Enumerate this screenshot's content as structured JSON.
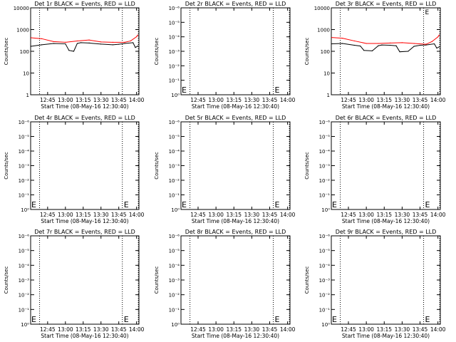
{
  "chart_data": [
    {
      "type": "line",
      "title": "Det 1r BLACK = Events, RED = LLD",
      "xlabel": "Start Time (08-May-16 12:30:40)",
      "ylabel": "Counts/sec",
      "y_scale": "log",
      "ylim": [
        1,
        10000
      ],
      "y_tick_labels": [
        "1",
        "10",
        "100",
        "1000",
        "10000"
      ],
      "x_tick_labels": [
        "12:45",
        "13:00",
        "13:15",
        "13:30",
        "13:45",
        "14:00"
      ],
      "x_range_minutes_after_1230": [
        0.67,
        92.0
      ],
      "markers_dotted_minutes_after_1230": [
        8.2,
        78.0,
        91.5
      ],
      "series": [
        {
          "color": "#000000",
          "x": [
            "12:31",
            "12:40",
            "12:50",
            "13:00",
            "13:03",
            "13:07",
            "13:10",
            "13:13",
            "13:20",
            "13:30",
            "13:40",
            "13:45",
            "13:50",
            "13:57",
            "13:59",
            "14:01"
          ],
          "values": [
            170,
            200,
            230,
            220,
            110,
            100,
            230,
            250,
            240,
            215,
            200,
            210,
            230,
            250,
            150,
            175
          ]
        },
        {
          "color": "#ff0000",
          "x": [
            "12:31",
            "12:40",
            "12:50",
            "13:00",
            "13:10",
            "13:20",
            "13:30",
            "13:40",
            "13:50",
            "13:55",
            "14:00",
            "14:01"
          ],
          "values": [
            420,
            380,
            280,
            260,
            300,
            330,
            270,
            260,
            260,
            300,
            470,
            560
          ]
        }
      ]
    },
    {
      "type": "line",
      "title": "Det 2r BLACK = Events, RED = LLD",
      "xlabel": "Start Time (08-May-16 12:30:40)",
      "ylabel": "Counts/sec",
      "y_scale": "log",
      "y_tick_labels": [
        "10⁰",
        "10⁻¹",
        "10⁻²",
        "10⁻³",
        "10⁻⁴",
        "10⁻⁵",
        "10⁻⁶"
      ],
      "x_tick_labels": [
        "12:45",
        "13:00",
        "13:15",
        "13:30",
        "13:45",
        "14:00"
      ],
      "markers_dotted_minutes_after_1230": [
        8.2,
        78.0,
        91.5
      ],
      "annotations": [
        "E",
        "E"
      ],
      "series": []
    },
    {
      "type": "line",
      "title": "Det 3r BLACK = Events, RED = LLD",
      "xlabel": "Start Time (08-May-16 12:30:40)",
      "ylabel": "Counts/sec",
      "y_scale": "log",
      "ylim": [
        1,
        10000
      ],
      "y_tick_labels": [
        "1",
        "10",
        "100",
        "1000",
        "10000"
      ],
      "x_tick_labels": [
        "12:45",
        "13:00",
        "13:15",
        "13:30",
        "13:45",
        "14:00"
      ],
      "markers_dotted_minutes_after_1230": [
        8.2,
        78.0,
        91.5
      ],
      "annotations": [
        "E"
      ],
      "series": [
        {
          "color": "#000000",
          "x": [
            "12:31",
            "12:40",
            "12:50",
            "12:55",
            "12:58",
            "13:05",
            "13:10",
            "13:13",
            "13:20",
            "13:25",
            "13:28",
            "13:35",
            "13:40",
            "13:45",
            "13:50",
            "13:57",
            "13:59",
            "14:01"
          ],
          "values": [
            220,
            230,
            190,
            175,
            110,
            105,
            180,
            195,
            190,
            180,
            95,
            100,
            170,
            190,
            195,
            220,
            140,
            160
          ]
        },
        {
          "color": "#ff0000",
          "x": [
            "12:31",
            "12:40",
            "12:50",
            "13:00",
            "13:10",
            "13:20",
            "13:30",
            "13:40",
            "13:50",
            "13:55",
            "14:00",
            "14:01"
          ],
          "values": [
            430,
            400,
            300,
            230,
            230,
            240,
            250,
            230,
            210,
            280,
            460,
            560
          ]
        }
      ]
    },
    {
      "type": "line",
      "title": "Det 4r BLACK = Events, RED = LLD",
      "xlabel": "Start Time (08-May-16 12:30:40)",
      "ylabel": "Counts/sec",
      "y_scale": "log",
      "y_tick_labels": [
        "10⁰",
        "10⁻¹",
        "10⁻²",
        "10⁻³",
        "10⁻⁴",
        "10⁻⁵",
        "10⁻⁶"
      ],
      "x_tick_labels": [
        "12:45",
        "13:00",
        "13:15",
        "13:30",
        "13:45",
        "14:00"
      ],
      "markers_dotted_minutes_after_1230": [
        8.2,
        78.0,
        91.5
      ],
      "annotations": [
        "E",
        "E"
      ],
      "series": []
    },
    {
      "type": "line",
      "title": "Det 5r BLACK = Events, RED = LLD",
      "xlabel": "Start Time (08-May-16 12:30:40)",
      "ylabel": "Counts/sec",
      "y_scale": "log",
      "y_tick_labels": [
        "10⁰",
        "10⁻¹",
        "10⁻²",
        "10⁻³",
        "10⁻⁴",
        "10⁻⁵",
        "10⁻⁶"
      ],
      "x_tick_labels": [
        "12:45",
        "13:00",
        "13:15",
        "13:30",
        "13:45",
        "14:00"
      ],
      "markers_dotted_minutes_after_1230": [
        8.2,
        78.0,
        91.5
      ],
      "annotations": [
        "E",
        "E"
      ],
      "series": []
    },
    {
      "type": "line",
      "title": "Det 6r BLACK = Events, RED = LLD",
      "xlabel": "Start Time (08-May-16 12:30:40)",
      "ylabel": "Counts/sec",
      "y_scale": "log",
      "y_tick_labels": [
        "10⁰",
        "10⁻¹",
        "10⁻²",
        "10⁻³",
        "10⁻⁴",
        "10⁻⁵",
        "10⁻⁶"
      ],
      "x_tick_labels": [
        "12:45",
        "13:00",
        "13:15",
        "13:30",
        "13:45",
        "14:00"
      ],
      "markers_dotted_minutes_after_1230": [
        8.2,
        78.0,
        91.5
      ],
      "annotations": [
        "E",
        "E"
      ],
      "series": []
    },
    {
      "type": "line",
      "title": "Det 7r BLACK = Events, RED = LLD",
      "xlabel": "Start Time (08-May-16 12:30:40)",
      "ylabel": "Counts/sec",
      "y_scale": "log",
      "y_tick_labels": [
        "10⁰",
        "10⁻¹",
        "10⁻²",
        "10⁻³",
        "10⁻⁴",
        "10⁻⁵",
        "10⁻⁶"
      ],
      "x_tick_labels": [
        "12:45",
        "13:00",
        "13:15",
        "13:30",
        "13:45",
        "14:00"
      ],
      "markers_dotted_minutes_after_1230": [
        8.2,
        78.0,
        91.5
      ],
      "annotations": [
        "E",
        "E"
      ],
      "series": []
    },
    {
      "type": "line",
      "title": "Det 8r BLACK = Events, RED = LLD",
      "xlabel": "Start Time (08-May-16 12:30:40)",
      "ylabel": "Counts/sec",
      "y_scale": "log",
      "y_tick_labels": [
        "10⁰",
        "10⁻¹",
        "10⁻²",
        "10⁻³",
        "10⁻⁴",
        "10⁻⁵",
        "10⁻⁶"
      ],
      "x_tick_labels": [
        "12:45",
        "13:00",
        "13:15",
        "13:30",
        "13:45",
        "14:00"
      ],
      "markers_dotted_minutes_after_1230": [
        8.2,
        78.0,
        91.5
      ],
      "annotations": [
        "E"
      ],
      "series": []
    },
    {
      "type": "line",
      "title": "Det 9r BLACK = Events, RED = LLD",
      "xlabel": "Start Time (08-May-16 12:30:40)",
      "ylabel": "Counts/sec",
      "y_scale": "log",
      "y_tick_labels": [
        "10⁰",
        "10⁻¹",
        "10⁻²",
        "10⁻³",
        "10⁻⁴",
        "10⁻⁵",
        "10⁻⁶"
      ],
      "x_tick_labels": [
        "12:45",
        "13:00",
        "13:15",
        "13:30",
        "13:45",
        "14:00"
      ],
      "markers_dotted_minutes_after_1230": [
        8.2,
        78.0,
        91.5
      ],
      "annotations": [
        "E",
        "E"
      ],
      "series": []
    }
  ]
}
